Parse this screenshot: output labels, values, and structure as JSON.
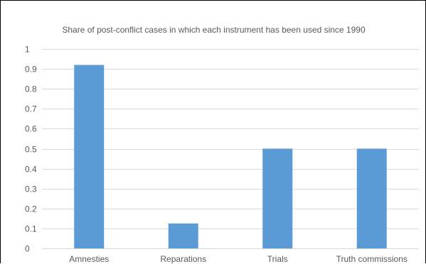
{
  "chart_data": {
    "type": "bar",
    "title": "Share of post-conflict cases in which each instrument has been used since 1990",
    "xlabel": "",
    "ylabel": "",
    "categories": [
      "Amnesties",
      "Reparations",
      "Trials",
      "Truth commissions"
    ],
    "values": [
      0.92,
      0.125,
      0.5,
      0.5
    ],
    "ylim": [
      0,
      1
    ],
    "yticks": [
      0,
      0.1,
      0.2,
      0.3,
      0.4,
      0.5,
      0.6,
      0.7,
      0.8,
      0.9,
      1
    ],
    "ytick_labels": [
      "0",
      "0.1",
      "0.2",
      "0.3",
      "0.4",
      "0.5",
      "0.6",
      "0.7",
      "0.8",
      "0.9",
      "1"
    ],
    "grid": true,
    "legend": "none",
    "colors": {
      "bar": "#5B9BD5",
      "grid": "#D9D9D9",
      "text": "#595959",
      "frame": "#000000"
    }
  }
}
